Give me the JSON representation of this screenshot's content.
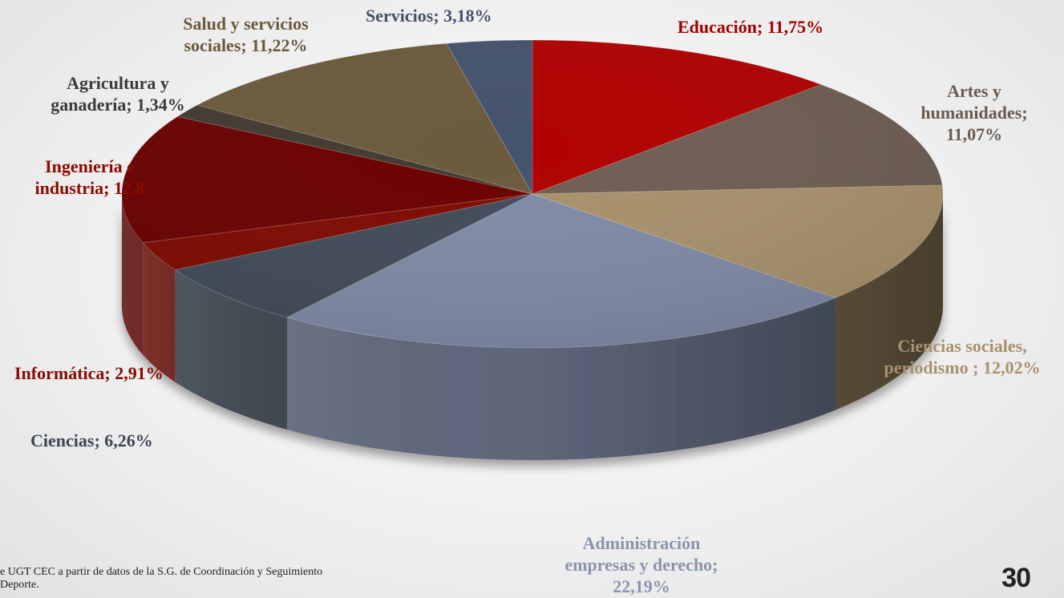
{
  "chart_data": {
    "type": "pie",
    "title": "",
    "slices": [
      {
        "label": "Educación",
        "value": 11.75,
        "text": "Educación; 11,75%",
        "color": "#b00000",
        "label_color": "#a30000"
      },
      {
        "label": "Artes y humanidades",
        "value": 11.07,
        "text": "Artes y humanidades; 11,07%",
        "color": "#6e5d52",
        "label_color": "#6a5a50"
      },
      {
        "label": "Ciencias sociales, periodismo",
        "value": 12.02,
        "text": "Ciencias sociales, periodismo ; 12,02%",
        "color": "#a8916c",
        "label_color": "#a8916c"
      },
      {
        "label": "Administración empresas y derecho",
        "value": 22.19,
        "text": "Administración empresas y derecho; 22,19%",
        "color": "#7f8aa6",
        "label_color": "#8a94ad"
      },
      {
        "label": "Ciencias",
        "value": 6.26,
        "text": "Ciencias; 6,26%",
        "color": "#414b59",
        "label_color": "#3d4656"
      },
      {
        "label": "Informática",
        "value": 2.91,
        "text": "Informática; 2,91%",
        "color": "#7e0a00",
        "label_color": "#8a0a00"
      },
      {
        "label": "Ingeniería e industria",
        "value": 12.8,
        "text": "Ingeniería e industria; 12,8",
        "color": "#6b0000",
        "label_color": "#8a0a00"
      },
      {
        "label": "Agricultura y ganadería",
        "value": 1.34,
        "text": "Agricultura y ganadería; 1,34%",
        "color": "#423930",
        "label_color": "#3a3a3a"
      },
      {
        "label": "Salud y servicios sociales",
        "value": 11.22,
        "text": "Salud y servicios sociales; 11,22%",
        "color": "#6b5a3c",
        "label_color": "#6b5a3c"
      },
      {
        "label": "Servicios",
        "value": 3.18,
        "text": "Servicios; 3,18%",
        "color": "#45526d",
        "label_color": "#45526d"
      }
    ]
  },
  "labels": {
    "educacion": [
      "Educación; 11,75%"
    ],
    "artes": [
      "Artes y",
      "humanidades;",
      "11,07%"
    ],
    "ciencias_sociales": [
      "Ciencias sociales,",
      "periodismo ; 12,02%"
    ],
    "administracion": [
      "Administración",
      "empresas y derecho;",
      "22,19%"
    ],
    "ciencias": [
      "Ciencias; 6,26%"
    ],
    "informatica": [
      "Informática; 2,91%"
    ],
    "ingenieria": [
      "Ingeniería e",
      "industria; 12,8"
    ],
    "agricultura": [
      "Agricultura y",
      "ganadería; 1,34%"
    ],
    "salud": [
      "Salud y servicios",
      "sociales; 11,22%"
    ],
    "servicios": [
      "Servicios; 3,18%"
    ]
  },
  "footer": {
    "source_line1": "e UGT CEC a partir de datos de la S.G. de Coordinación y Seguimiento",
    "source_line2": " Deporte.",
    "page_number": "30"
  }
}
